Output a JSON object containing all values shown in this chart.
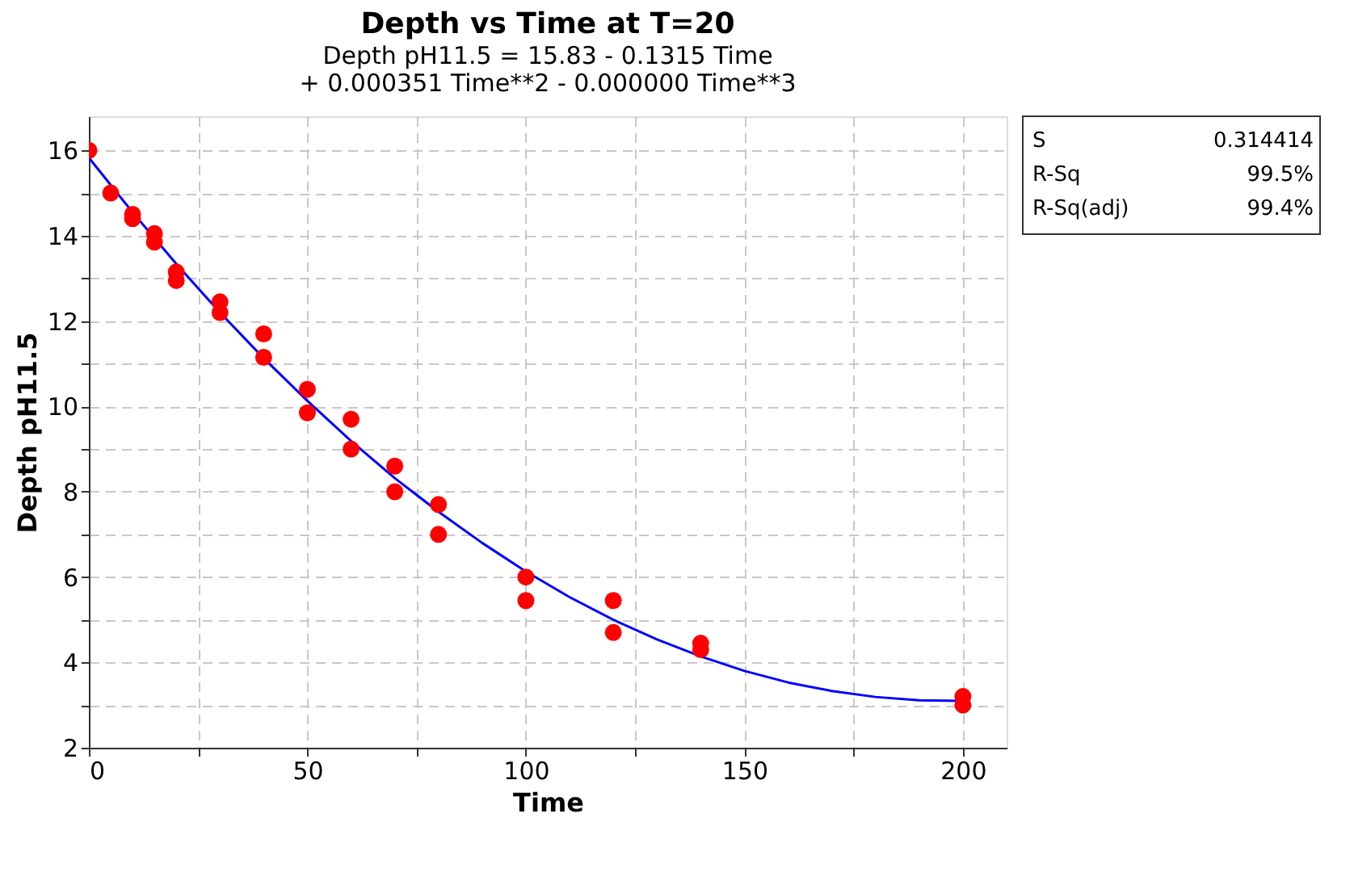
{
  "chart_data": {
    "type": "scatter",
    "title": "Depth vs Time at T=20",
    "subtitle": "Depth pH11.5 =  15.83 - 0.1315 Time\n+ 0.000351 Time**2 - 0.000000 Time**3",
    "xlabel": "Time",
    "ylabel": "Depth pH11.5",
    "series": [
      {
        "color": "#ff0000",
        "x": [
          0,
          5,
          10,
          10,
          15,
          15,
          20,
          20,
          30,
          30,
          40,
          40,
          50,
          50,
          60,
          60,
          70,
          70,
          80,
          80,
          100,
          100,
          120,
          120,
          140,
          140,
          200,
          200
        ],
        "values": [
          16,
          15,
          14.5,
          14.4,
          14.05,
          13.85,
          13.15,
          12.95,
          12.45,
          12.2,
          11.7,
          11.15,
          10.4,
          9.85,
          9.7,
          9.0,
          8.6,
          8.0,
          7.7,
          7.0,
          6.0,
          5.45,
          5.45,
          4.7,
          4.45,
          4.3,
          3.2,
          3.0
        ]
      },
      {
        "type": "line",
        "marker": "none",
        "color": "#0000ff",
        "x": [
          0,
          10,
          20,
          30,
          40,
          50,
          60,
          70,
          80,
          90,
          100,
          110,
          120,
          130,
          140,
          150,
          160,
          170,
          180,
          190,
          200
        ],
        "values": [
          15.83,
          14.55,
          13.34,
          12.2,
          11.13,
          10.13,
          9.19,
          8.32,
          7.53,
          6.8,
          6.13,
          5.53,
          5.0,
          4.54,
          4.14,
          3.8,
          3.53,
          3.33,
          3.19,
          3.11,
          3.1
        ]
      }
    ],
    "xlim": [
      0,
      210
    ],
    "xticks": [
      0,
      {
        "value": 25,
        "label": null
      },
      50,
      {
        "value": 75,
        "label": null
      },
      100,
      {
        "value": 125,
        "label": null
      },
      150,
      {
        "value": 175,
        "label": null
      },
      200
    ],
    "ylim": [
      2,
      16.8
    ],
    "yticks": [
      2,
      {
        "value": 3,
        "label": null
      },
      4,
      {
        "value": 5,
        "label": null
      },
      6,
      {
        "value": 7,
        "label": null
      },
      8,
      {
        "value": 9,
        "label": null
      },
      10,
      {
        "value": 11,
        "label": null
      },
      12,
      {
        "value": 13,
        "label": null
      },
      14,
      {
        "value": 15,
        "label": null
      },
      16
    ],
    "grid": true,
    "marker": "circle",
    "line_style": "solid",
    "annotations": [
      "S",
      "0.314414",
      "R-Sq",
      "99.5%",
      "R-Sq(adj)",
      "99.4%"
    ]
  }
}
